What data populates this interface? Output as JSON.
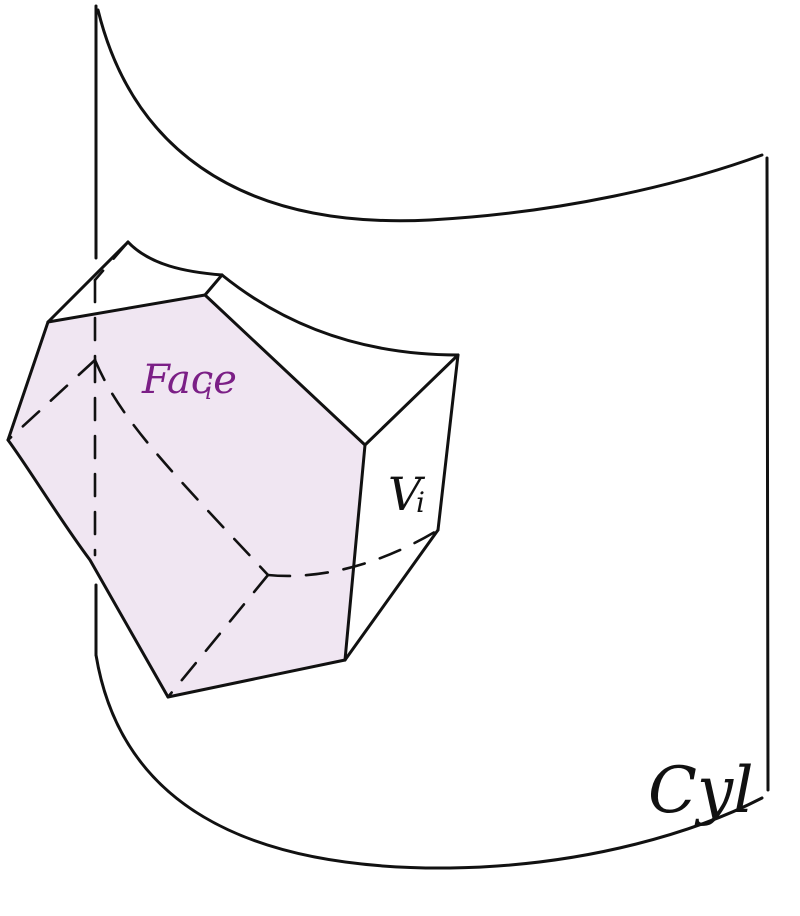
{
  "labels": {
    "face": "Face",
    "face_index": "i",
    "cell": "V",
    "cell_index": "i",
    "cylinder": "Cyl"
  },
  "colors": {
    "ink": "#111111",
    "face_fill": "#f0e6f2",
    "face_label": "#7b1f86"
  }
}
